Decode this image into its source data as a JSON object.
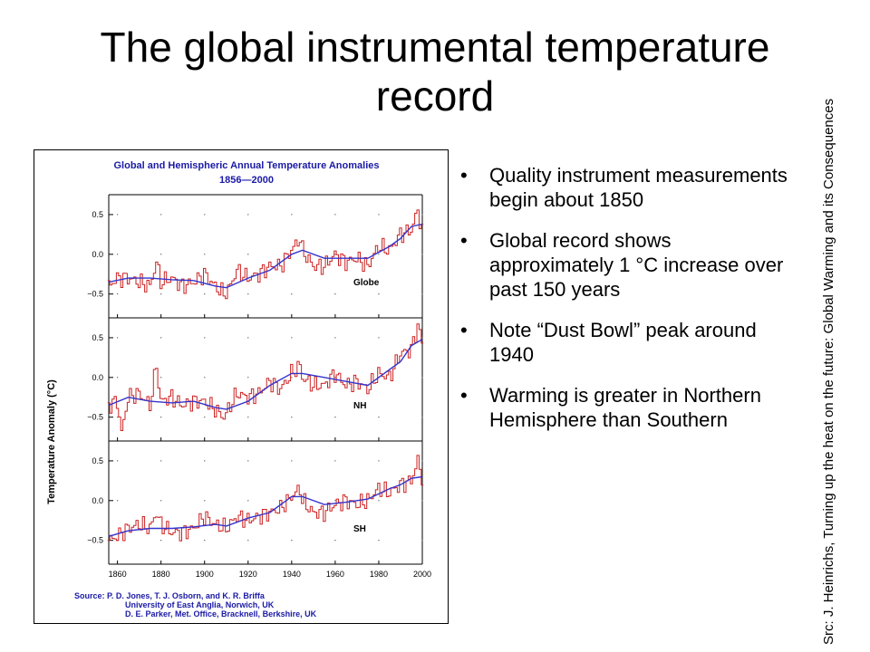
{
  "slide": {
    "title": "The global instrumental temperature record",
    "bullets": [
      "Quality instrument measurements begin about 1850",
      "Global record shows approximately 1 °C increase over past 150 years",
      "Note “Dust Bowl” peak around 1940",
      "Warming is greater in Northern Hemisphere than Southern"
    ],
    "source_note": "Src: J. Heinrichs, Turning up the heat on the future: Global Warming and its Consequences"
  },
  "colors": {
    "annual_bars": "#cc2222",
    "smoothed_line": "#3333cc",
    "title_text": "#1a1aa6",
    "source_text": "#1a1aa6",
    "axes": "#000000"
  },
  "chart_data": {
    "type": "line",
    "title": "Global and Hemispheric Annual Temperature Anomalies",
    "subtitle": "1856—2000",
    "ylabel": "Temperature Anomaly (°C)",
    "xlim": [
      1856,
      2000
    ],
    "ylim": [
      -0.8,
      0.75
    ],
    "x_ticks": [
      1860,
      1880,
      1900,
      1920,
      1940,
      1960,
      1980,
      2000
    ],
    "x_tick_labels": [
      "1860",
      "1880",
      "1900",
      "1920",
      "1940",
      "1960",
      "1980",
      "2000"
    ],
    "y_ticks": [
      0.5,
      0.0,
      -0.5
    ],
    "y_tick_labels": [
      "0.5",
      "0.0",
      "−0.5"
    ],
    "grid": false,
    "source_lines": [
      "Source: P. D. Jones, T. J. Osborn, and K. R. Briffa",
      "University of East Anglia, Norwich, UK",
      "D. E. Parker, Met. Office, Bracknell, Berkshire, UK"
    ],
    "panels": [
      {
        "name": "Globe",
        "annual": {
          "x": [
            1856,
            1860,
            1865,
            1870,
            1875,
            1878,
            1880,
            1885,
            1890,
            1895,
            1900,
            1905,
            1909,
            1911,
            1915,
            1920,
            1925,
            1930,
            1935,
            1940,
            1944,
            1945,
            1950,
            1955,
            1960,
            1965,
            1970,
            1975,
            1980,
            1985,
            1990,
            1995,
            1998,
            2000
          ],
          "y": [
            -0.4,
            -0.3,
            -0.3,
            -0.35,
            -0.4,
            -0.1,
            -0.35,
            -0.3,
            -0.4,
            -0.35,
            -0.25,
            -0.4,
            -0.5,
            -0.45,
            -0.2,
            -0.3,
            -0.25,
            -0.15,
            -0.15,
            0.05,
            0.2,
            0.05,
            -0.15,
            -0.15,
            0.0,
            -0.1,
            -0.05,
            -0.15,
            0.1,
            0.05,
            0.25,
            0.3,
            0.55,
            0.3
          ]
        },
        "smoothed": {
          "x": [
            1856,
            1865,
            1875,
            1885,
            1895,
            1905,
            1910,
            1920,
            1930,
            1940,
            1945,
            1955,
            1965,
            1975,
            1985,
            1990,
            1995,
            2000
          ],
          "y": [
            -0.35,
            -0.3,
            -0.3,
            -0.32,
            -0.33,
            -0.4,
            -0.42,
            -0.3,
            -0.2,
            0.0,
            0.05,
            -0.05,
            -0.05,
            -0.05,
            0.1,
            0.2,
            0.35,
            0.38
          ]
        }
      },
      {
        "name": "NH",
        "annual": {
          "x": [
            1856,
            1860,
            1862,
            1865,
            1870,
            1875,
            1878,
            1880,
            1885,
            1890,
            1895,
            1900,
            1905,
            1909,
            1915,
            1920,
            1925,
            1930,
            1935,
            1940,
            1944,
            1945,
            1950,
            1955,
            1960,
            1965,
            1970,
            1975,
            1980,
            1985,
            1990,
            1995,
            1998,
            2000
          ],
          "y": [
            -0.35,
            -0.3,
            -0.7,
            -0.25,
            -0.2,
            -0.35,
            0.15,
            -0.3,
            -0.25,
            -0.35,
            -0.3,
            -0.3,
            -0.4,
            -0.5,
            -0.2,
            -0.25,
            -0.2,
            -0.05,
            -0.15,
            0.05,
            0.15,
            0.0,
            -0.1,
            -0.1,
            0.05,
            -0.1,
            -0.05,
            -0.15,
            0.05,
            0.0,
            0.3,
            0.35,
            0.65,
            0.45
          ]
        },
        "smoothed": {
          "x": [
            1856,
            1865,
            1875,
            1885,
            1895,
            1905,
            1910,
            1920,
            1930,
            1940,
            1945,
            1955,
            1965,
            1975,
            1980,
            1985,
            1990,
            1995,
            2000
          ],
          "y": [
            -0.35,
            -0.25,
            -0.3,
            -0.32,
            -0.3,
            -0.38,
            -0.4,
            -0.3,
            -0.1,
            0.05,
            0.05,
            0.0,
            -0.05,
            -0.1,
            0.0,
            0.1,
            0.2,
            0.4,
            0.48
          ]
        }
      },
      {
        "name": "SH",
        "annual": {
          "x": [
            1856,
            1860,
            1865,
            1870,
            1875,
            1878,
            1880,
            1885,
            1890,
            1895,
            1900,
            1905,
            1910,
            1915,
            1920,
            1925,
            1930,
            1935,
            1940,
            1944,
            1945,
            1950,
            1955,
            1960,
            1965,
            1970,
            1975,
            1980,
            1985,
            1990,
            1995,
            1998,
            2000
          ],
          "y": [
            -0.5,
            -0.45,
            -0.35,
            -0.3,
            -0.35,
            -0.15,
            -0.3,
            -0.4,
            -0.4,
            -0.35,
            -0.2,
            -0.3,
            -0.35,
            -0.2,
            -0.25,
            -0.2,
            -0.15,
            -0.1,
            0.05,
            0.15,
            0.0,
            -0.15,
            -0.15,
            -0.05,
            0.0,
            -0.05,
            0.0,
            0.15,
            0.1,
            0.2,
            0.25,
            0.5,
            0.3
          ]
        },
        "smoothed": {
          "x": [
            1856,
            1865,
            1875,
            1885,
            1895,
            1905,
            1910,
            1920,
            1930,
            1940,
            1945,
            1955,
            1965,
            1975,
            1985,
            1990,
            1995,
            2000
          ],
          "y": [
            -0.45,
            -0.38,
            -0.35,
            -0.35,
            -0.33,
            -0.3,
            -0.32,
            -0.22,
            -0.15,
            0.05,
            0.05,
            -0.05,
            -0.02,
            0.02,
            0.15,
            0.2,
            0.28,
            0.3
          ]
        }
      }
    ]
  }
}
